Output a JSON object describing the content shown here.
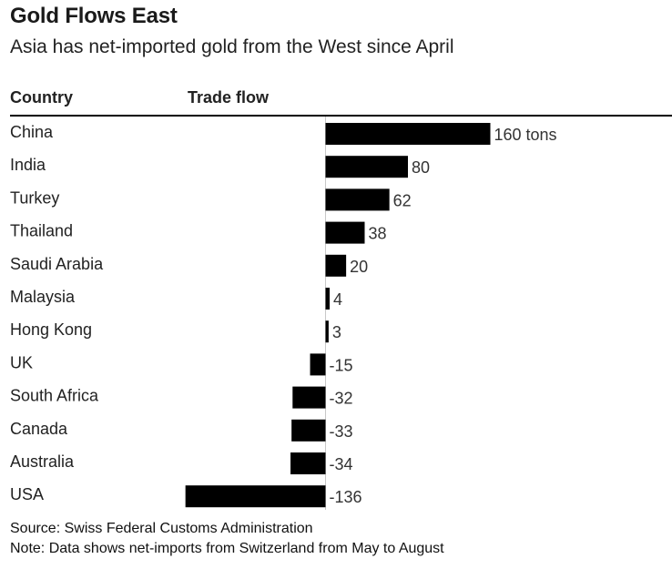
{
  "header": {
    "title": "Gold Flows East",
    "subtitle": "Asia has net-imported gold from the West since April"
  },
  "columns": {
    "country": "Country",
    "flow": "Trade flow"
  },
  "chart_data": {
    "type": "bar",
    "orientation": "horizontal",
    "title": "Gold Flows East",
    "subtitle": "Asia has net-imported gold from the West since April",
    "unit": "tons",
    "categories": [
      "China",
      "India",
      "Turkey",
      "Thailand",
      "Saudi Arabia",
      "Malaysia",
      "Hong Kong",
      "UK",
      "South Africa",
      "Canada",
      "Australia",
      "USA"
    ],
    "values": [
      160,
      80,
      62,
      38,
      20,
      4,
      3,
      -15,
      -32,
      -33,
      -34,
      -136
    ],
    "value_labels": [
      "160 tons",
      "80",
      "62",
      "38",
      "20",
      "4",
      "3",
      "-15",
      "-32",
      "-33",
      "-34",
      "-136"
    ],
    "xlim": [
      -136,
      160
    ],
    "colors": {
      "bar": "#000000"
    }
  },
  "footer": {
    "source": "Source: Swiss Federal Customs Administration",
    "note": "Note: Data shows net-imports from Switzerland from May to August"
  }
}
